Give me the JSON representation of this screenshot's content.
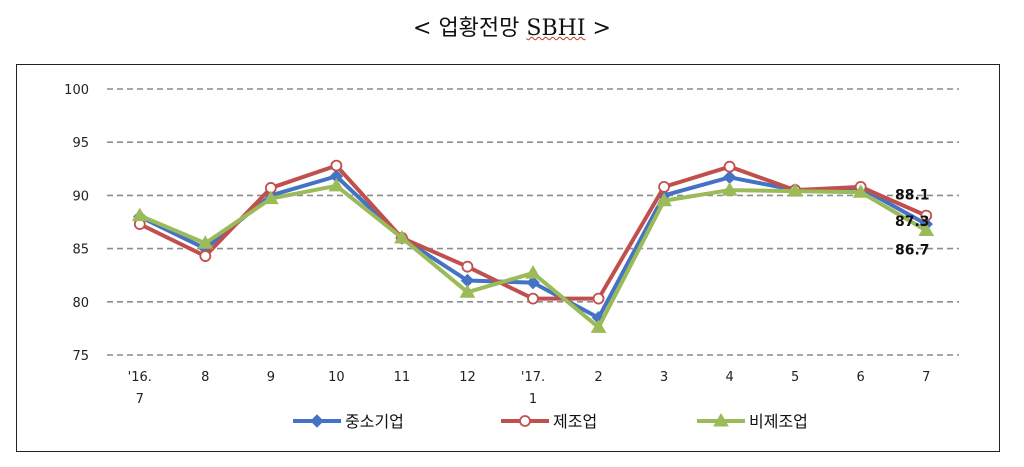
{
  "title": {
    "prefix": "< 업황전망",
    "sbhi": "SBHI",
    "suffix": ">"
  },
  "chart_data": {
    "type": "line",
    "title": "< 업황전망 SBHI >",
    "xlabel": "",
    "ylabel": "",
    "ylim": [
      75,
      100
    ],
    "yticks": [
      100,
      95,
      90,
      85,
      80,
      75
    ],
    "grid": "horizontal dashed",
    "legend_position": "bottom",
    "categories": [
      [
        "'16.",
        "7"
      ],
      [
        "8"
      ],
      [
        "9"
      ],
      [
        "10"
      ],
      [
        "11"
      ],
      [
        "12"
      ],
      [
        "'17.",
        "1"
      ],
      [
        "2"
      ],
      [
        "3"
      ],
      [
        "4"
      ],
      [
        "5"
      ],
      [
        "6"
      ],
      [
        "7"
      ]
    ],
    "series": [
      {
        "name": "중소기업",
        "color": "#4472C4",
        "marker": "diamond",
        "values": [
          88.0,
          85.0,
          90.0,
          91.8,
          86.0,
          82.0,
          81.8,
          78.5,
          90.0,
          91.7,
          90.5,
          90.7,
          87.3
        ]
      },
      {
        "name": "제조업",
        "color": "#C0504D",
        "marker": "circle-open",
        "values": [
          87.3,
          84.3,
          90.7,
          92.8,
          86.0,
          83.3,
          80.3,
          80.3,
          90.8,
          92.7,
          90.5,
          90.8,
          88.1
        ]
      },
      {
        "name": "비제조업",
        "color": "#9BBB59",
        "marker": "triangle",
        "values": [
          88.1,
          85.5,
          89.7,
          90.9,
          86.0,
          80.9,
          82.7,
          77.6,
          89.5,
          90.5,
          90.4,
          90.3,
          86.7
        ]
      }
    ],
    "end_labels": [
      "88.1",
      "87.3",
      "86.7"
    ]
  }
}
